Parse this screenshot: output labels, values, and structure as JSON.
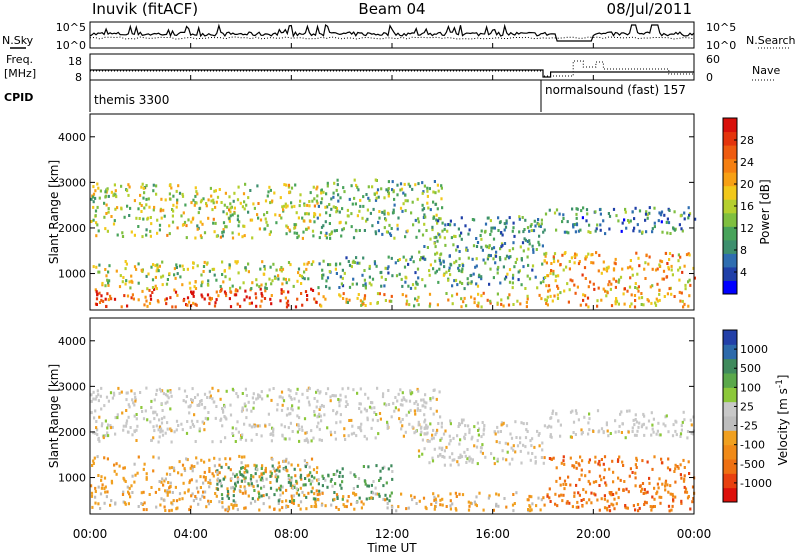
{
  "header": {
    "station": "Inuvik (fitACF)",
    "beam": "Beam 04",
    "date": "08/Jul/2011"
  },
  "noise_panel": {
    "left_label": "N.Sky",
    "right_label": "N.Search",
    "tick_labels": [
      "10^5",
      "10^0"
    ]
  },
  "freq_panel": {
    "left_label_line1": "Freq.",
    "left_label_line2": "[MHz]",
    "left_ticks": [
      "18",
      "8"
    ],
    "right_label": "Nave",
    "right_ticks": [
      "60",
      "0"
    ]
  },
  "cpid_panel": {
    "label": "CPID",
    "modes": [
      {
        "text": "themis 3300",
        "start_hour": 0
      },
      {
        "text": "normalsound (fast) 157",
        "start_hour": 18
      }
    ]
  },
  "time_axis": {
    "title": "Time UT",
    "ticks": [
      "00:00",
      "04:00",
      "08:00",
      "12:00",
      "16:00",
      "20:00",
      "00:00"
    ]
  },
  "colors": {
    "power_scale": [
      "#0000ff",
      "#1f3fa8",
      "#2e6db0",
      "#3d8f6e",
      "#48a35a",
      "#7fbf3f",
      "#b5cf2e",
      "#f2c81a",
      "#f7a014",
      "#f57f11",
      "#ee5b10",
      "#e4340c",
      "#d8100a"
    ],
    "velocity_scale": [
      "#2340a8",
      "#2d6aab",
      "#3f8a5c",
      "#5aa84a",
      "#8cc83a",
      "#c8c8c8",
      "#bdbdbd",
      "#f0a020",
      "#f08a18",
      "#ee7012",
      "#e8400f",
      "#dd100a"
    ]
  },
  "chart_data": [
    {
      "type": "heatmap",
      "name": "power",
      "ylabel": "Slant Range [km]",
      "yticks": [
        "1000",
        "2000",
        "3000",
        "4000"
      ],
      "ylim": [
        200,
        4500
      ],
      "xlim_hours": [
        0,
        24
      ],
      "colorbar_label": "Power [dB]",
      "colorbar_ticks": [
        "4",
        "8",
        "12",
        "16",
        "20",
        "24",
        "28"
      ],
      "colorbar_range": [
        0,
        30
      ],
      "scatter_bands": [
        {
          "t0": 0,
          "t1": 6,
          "r0": 300,
          "r1": 700,
          "level": 26
        },
        {
          "t0": 4.5,
          "t1": 9,
          "r0": 300,
          "r1": 700,
          "level": 27
        },
        {
          "t0": 9,
          "t1": 18,
          "r0": 300,
          "r1": 600,
          "level": 18
        },
        {
          "t0": 0,
          "t1": 9,
          "r0": 700,
          "r1": 1300,
          "level": 14
        },
        {
          "t0": 9,
          "t1": 18,
          "r0": 700,
          "r1": 1400,
          "level": 10
        },
        {
          "t0": 18,
          "t1": 24,
          "r0": 300,
          "r1": 1500,
          "level": 20
        },
        {
          "t0": 0,
          "t1": 9,
          "r0": 1800,
          "r1": 3000,
          "level": 15
        },
        {
          "t0": 9,
          "t1": 14,
          "r0": 1800,
          "r1": 3100,
          "level": 11
        },
        {
          "t0": 13,
          "t1": 18,
          "r0": 1300,
          "r1": 2300,
          "level": 9
        },
        {
          "t0": 18,
          "t1": 24,
          "r0": 1900,
          "r1": 2500,
          "level": 8
        }
      ]
    },
    {
      "type": "heatmap",
      "name": "velocity",
      "ylabel": "Slant Range [km]",
      "yticks": [
        "1000",
        "2000",
        "3000",
        "4000"
      ],
      "ylim": [
        200,
        4500
      ],
      "xlim_hours": [
        0,
        24
      ],
      "colorbar_label": "Velocity [m s^-1]",
      "colorbar_ticks": [
        "1000",
        "500",
        "100",
        "25",
        "-25",
        "-100",
        "-500",
        "-1000"
      ],
      "scatter_bands": [
        {
          "t0": 0,
          "t1": 9,
          "r0": 300,
          "r1": 1500,
          "velocity": -150
        },
        {
          "t0": 5,
          "t1": 12,
          "r0": 500,
          "r1": 1300,
          "velocity": 100
        },
        {
          "t0": 9,
          "t1": 18,
          "r0": 300,
          "r1": 700,
          "velocity": -80
        },
        {
          "t0": 18,
          "t1": 24,
          "r0": 300,
          "r1": 1500,
          "velocity": -300
        },
        {
          "t0": 0,
          "t1": 14,
          "r0": 1800,
          "r1": 3000,
          "velocity": 0
        },
        {
          "t0": 13,
          "t1": 18,
          "r0": 1300,
          "r1": 2300,
          "velocity": 0
        },
        {
          "t0": 18,
          "t1": 24,
          "r0": 1900,
          "r1": 2500,
          "velocity": 0
        }
      ]
    }
  ]
}
